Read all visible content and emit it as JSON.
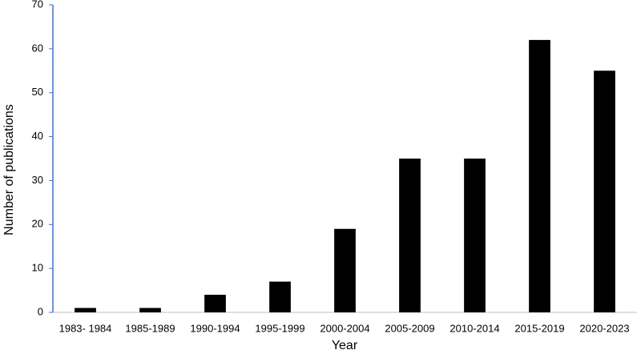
{
  "chart_data": {
    "type": "bar",
    "x_label": "Year",
    "y_label": "Number of publications",
    "categories": [
      "1983- 1984",
      "1985-1989",
      "1990-1994",
      "1995-1999",
      "2000-2004",
      "2005-2009",
      "2010-2014",
      "2015-2019",
      "2020-2023"
    ],
    "values": [
      1,
      1,
      4,
      7,
      19,
      35,
      35,
      62,
      55
    ],
    "color": "#000000",
    "ylim": [
      0,
      70
    ],
    "yticks": [
      0,
      10,
      20,
      30,
      40,
      50,
      60,
      70
    ],
    "grid": false
  }
}
